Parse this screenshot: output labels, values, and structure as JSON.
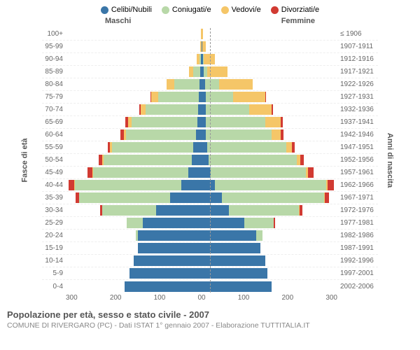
{
  "colors": {
    "celibi": "#3a76a8",
    "coniugati": "#b8d8a8",
    "vedovi": "#f5c668",
    "divorziati": "#d13a32",
    "text": "#555",
    "subtext": "#888",
    "grid": "#eee",
    "centerline": "#999"
  },
  "legend": [
    {
      "key": "celibi",
      "label": "Celibi/Nubili"
    },
    {
      "key": "coniugati",
      "label": "Coniugati/e"
    },
    {
      "key": "vedovi",
      "label": "Vedovi/e"
    },
    {
      "key": "divorziati",
      "label": "Divorziati/e"
    }
  ],
  "header_male": "Maschi",
  "header_female": "Femmine",
  "axis_left_title": "Fasce di età",
  "axis_right_title": "Anni di nascita",
  "x_max": 300,
  "x_ticks_left": [
    "300",
    "200",
    "100",
    "0"
  ],
  "x_ticks_right": [
    "0",
    "100",
    "200",
    "300"
  ],
  "title": "Popolazione per età, sesso e stato civile - 2007",
  "subtitle": "COMUNE DI RIVERGARO (PC) - Dati ISTAT 1° gennaio 2007 - Elaborazione TUTTITALIA.IT",
  "rows": [
    {
      "age": "100+",
      "year": "≤ 1906",
      "m": {
        "c": 0,
        "co": 0,
        "v": 2,
        "d": 0
      },
      "f": {
        "c": 0,
        "co": 0,
        "v": 3,
        "d": 0
      }
    },
    {
      "age": "95-99",
      "year": "1907-1911",
      "m": {
        "c": 0,
        "co": 0,
        "v": 3,
        "d": 0
      },
      "f": {
        "c": 2,
        "co": 0,
        "v": 8,
        "d": 0
      }
    },
    {
      "age": "90-94",
      "year": "1912-1916",
      "m": {
        "c": 2,
        "co": 3,
        "v": 6,
        "d": 0
      },
      "f": {
        "c": 3,
        "co": 2,
        "v": 25,
        "d": 0
      }
    },
    {
      "age": "85-89",
      "year": "1917-1921",
      "m": {
        "c": 3,
        "co": 15,
        "v": 10,
        "d": 0
      },
      "f": {
        "c": 5,
        "co": 8,
        "v": 45,
        "d": 0
      }
    },
    {
      "age": "80-84",
      "year": "1922-1926",
      "m": {
        "c": 5,
        "co": 55,
        "v": 18,
        "d": 0
      },
      "f": {
        "c": 8,
        "co": 30,
        "v": 75,
        "d": 0
      }
    },
    {
      "age": "75-79",
      "year": "1927-1931",
      "m": {
        "c": 6,
        "co": 90,
        "v": 15,
        "d": 2
      },
      "f": {
        "c": 10,
        "co": 60,
        "v": 70,
        "d": 3
      }
    },
    {
      "age": "70-74",
      "year": "1932-1936",
      "m": {
        "c": 8,
        "co": 115,
        "v": 12,
        "d": 3
      },
      "f": {
        "c": 10,
        "co": 95,
        "v": 50,
        "d": 3
      }
    },
    {
      "age": "65-69",
      "year": "1937-1941",
      "m": {
        "c": 10,
        "co": 145,
        "v": 8,
        "d": 5
      },
      "f": {
        "c": 10,
        "co": 130,
        "v": 35,
        "d": 5
      }
    },
    {
      "age": "60-64",
      "year": "1942-1946",
      "m": {
        "c": 12,
        "co": 155,
        "v": 5,
        "d": 8
      },
      "f": {
        "c": 10,
        "co": 145,
        "v": 20,
        "d": 6
      }
    },
    {
      "age": "55-59",
      "year": "1947-1951",
      "m": {
        "c": 18,
        "co": 180,
        "v": 4,
        "d": 6
      },
      "f": {
        "c": 12,
        "co": 175,
        "v": 12,
        "d": 6
      }
    },
    {
      "age": "50-54",
      "year": "1952-1956",
      "m": {
        "c": 22,
        "co": 195,
        "v": 3,
        "d": 8
      },
      "f": {
        "c": 15,
        "co": 195,
        "v": 8,
        "d": 8
      }
    },
    {
      "age": "45-49",
      "year": "1957-1961",
      "m": {
        "c": 30,
        "co": 210,
        "v": 2,
        "d": 10
      },
      "f": {
        "c": 20,
        "co": 210,
        "v": 5,
        "d": 12
      }
    },
    {
      "age": "40-44",
      "year": "1962-1966",
      "m": {
        "c": 45,
        "co": 235,
        "v": 1,
        "d": 13
      },
      "f": {
        "c": 30,
        "co": 245,
        "v": 3,
        "d": 15
      }
    },
    {
      "age": "35-39",
      "year": "1967-1971",
      "m": {
        "c": 70,
        "co": 200,
        "v": 1,
        "d": 8
      },
      "f": {
        "c": 45,
        "co": 225,
        "v": 2,
        "d": 10
      }
    },
    {
      "age": "30-34",
      "year": "1972-1976",
      "m": {
        "c": 100,
        "co": 120,
        "v": 0,
        "d": 4
      },
      "f": {
        "c": 60,
        "co": 155,
        "v": 1,
        "d": 6
      }
    },
    {
      "age": "25-29",
      "year": "1977-1981",
      "m": {
        "c": 130,
        "co": 35,
        "v": 0,
        "d": 1
      },
      "f": {
        "c": 95,
        "co": 65,
        "v": 0,
        "d": 2
      }
    },
    {
      "age": "20-24",
      "year": "1982-1986",
      "m": {
        "c": 140,
        "co": 5,
        "v": 0,
        "d": 0
      },
      "f": {
        "c": 120,
        "co": 15,
        "v": 0,
        "d": 0
      }
    },
    {
      "age": "15-19",
      "year": "1987-1991",
      "m": {
        "c": 140,
        "co": 0,
        "v": 0,
        "d": 0
      },
      "f": {
        "c": 130,
        "co": 0,
        "v": 0,
        "d": 0
      }
    },
    {
      "age": "10-14",
      "year": "1992-1996",
      "m": {
        "c": 150,
        "co": 0,
        "v": 0,
        "d": 0
      },
      "f": {
        "c": 140,
        "co": 0,
        "v": 0,
        "d": 0
      }
    },
    {
      "age": "5-9",
      "year": "1997-2001",
      "m": {
        "c": 160,
        "co": 0,
        "v": 0,
        "d": 0
      },
      "f": {
        "c": 145,
        "co": 0,
        "v": 0,
        "d": 0
      }
    },
    {
      "age": "0-4",
      "year": "2002-2006",
      "m": {
        "c": 170,
        "co": 0,
        "v": 0,
        "d": 0
      },
      "f": {
        "c": 155,
        "co": 0,
        "v": 0,
        "d": 0
      }
    }
  ]
}
